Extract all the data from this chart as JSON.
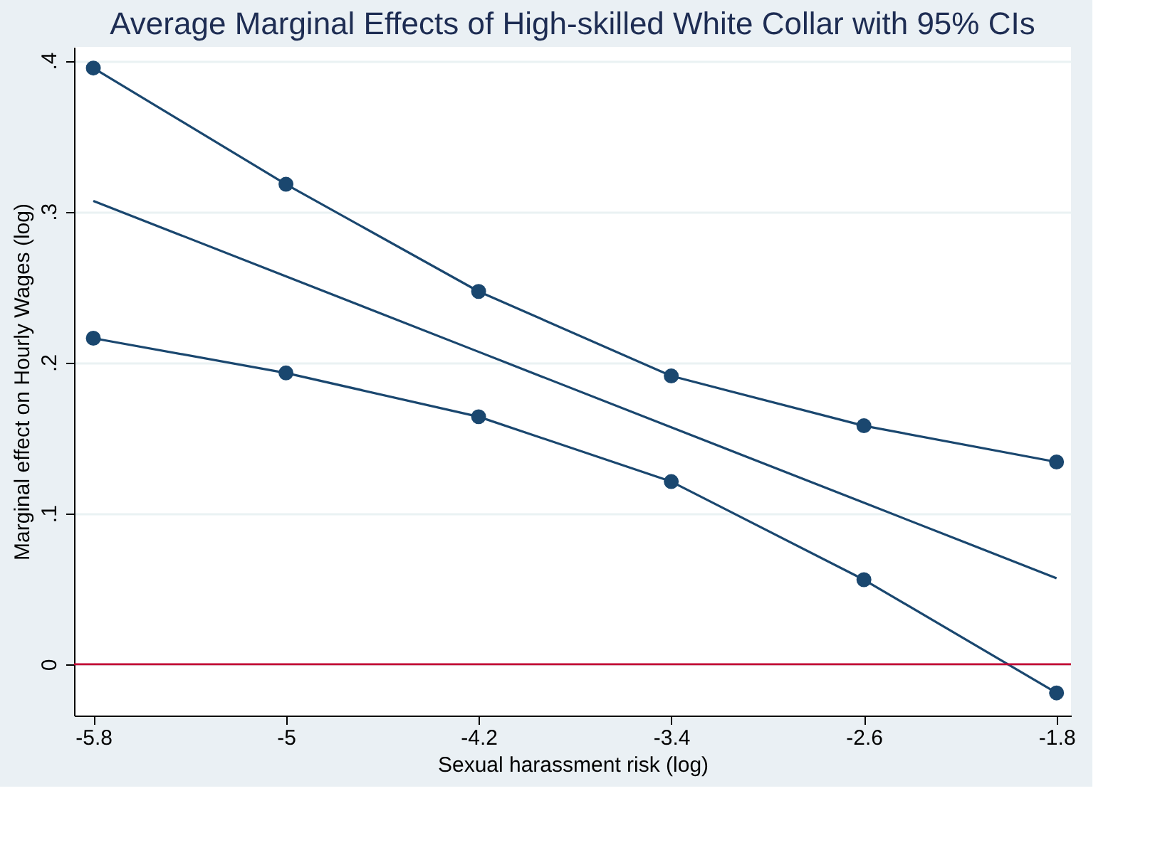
{
  "chart_data": {
    "type": "line",
    "title": "Average Marginal Effects of High-skilled White Collar with 95% CIs",
    "xlabel": "Sexual harassment risk (log)",
    "ylabel": "Marginal effect on Hourly Wages (log)",
    "x": [
      -5.8,
      -5,
      -4.2,
      -3.4,
      -2.6,
      -1.8
    ],
    "series": [
      {
        "color": "#1a476f",
        "values": [
          0.395,
          0.318,
          0.247,
          0.191,
          0.158,
          0.134
        ]
      },
      {
        "color": "#1a476f",
        "marker": "none",
        "values": [
          0.307,
          0.257,
          0.207,
          0.157,
          0.107,
          0.057
        ]
      },
      {
        "color": "#1a476f",
        "values": [
          0.216,
          0.193,
          0.164,
          0.121,
          0.056,
          -0.019
        ]
      }
    ],
    "xlim": [
      -5.88,
      -1.74
    ],
    "xticks": [
      {
        "value": -5.8,
        "label": "-5.8"
      },
      {
        "value": -5,
        "label": "-5"
      },
      {
        "value": -4.2,
        "label": "-4.2"
      },
      {
        "value": -3.4,
        "label": "-3.4"
      },
      {
        "value": -2.6,
        "label": "-2.6"
      },
      {
        "value": -1.8,
        "label": "-1.8"
      }
    ],
    "ylim": [
      -0.034,
      0.409
    ],
    "yticks": [
      {
        "value": 0,
        "label": "0"
      },
      {
        "value": 0.1,
        "label": ".1"
      },
      {
        "value": 0.2,
        "label": ".2"
      },
      {
        "value": 0.3,
        "label": ".3"
      },
      {
        "value": 0.4,
        "label": ".4"
      }
    ],
    "ref_lines": [
      {
        "axis": "y",
        "value": 0,
        "color": "#c10534"
      }
    ],
    "grid": "y",
    "marker": "circle",
    "line_style": "solid"
  }
}
